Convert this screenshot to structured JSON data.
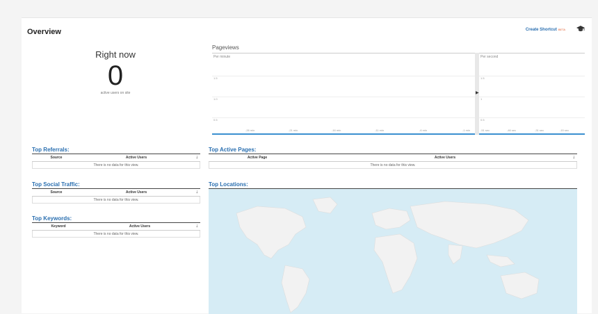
{
  "header": {
    "title": "Overview",
    "shortcut_label": "Create Shortcut",
    "beta_label": "BETA"
  },
  "right_now": {
    "title": "Right now",
    "count": "0",
    "subtitle": "active users on site"
  },
  "pageviews": {
    "title": "Pageviews",
    "per_minute_label": "Per minute",
    "per_second_label": "Per second",
    "minute_yticks": [
      "1.5",
      "1.0",
      "0.5"
    ],
    "minute_xticks": [
      "-26 min",
      "-21 min",
      "-16 min",
      "-11 min",
      "-6 min",
      "-1 min"
    ],
    "second_yticks": [
      "1.5",
      "1",
      "0.5"
    ],
    "second_xticks": [
      "-51 sec",
      "-46 sec",
      "-31 sec",
      "-15 sec"
    ]
  },
  "referrals": {
    "title": "Top Referrals:",
    "col1": "Source",
    "col2": "Active Users",
    "empty": "There is no data for this view."
  },
  "social": {
    "title": "Top Social Traffic:",
    "col1": "Source",
    "col2": "Active Users",
    "empty": "There is no data for this view."
  },
  "keywords": {
    "title": "Top Keywords:",
    "col1": "Keyword",
    "col2": "Active Users",
    "empty": "There is no data for this view."
  },
  "active_pages": {
    "title": "Top Active Pages:",
    "col1": "Active Page",
    "col2": "Active Users",
    "empty": "There is no data for this view."
  },
  "locations": {
    "title": "Top Locations:"
  },
  "colors": {
    "accent": "#2a6fb0",
    "axis": "#3a8fd0",
    "map_water": "#d6ecf5",
    "map_land": "#f2f2f2"
  }
}
